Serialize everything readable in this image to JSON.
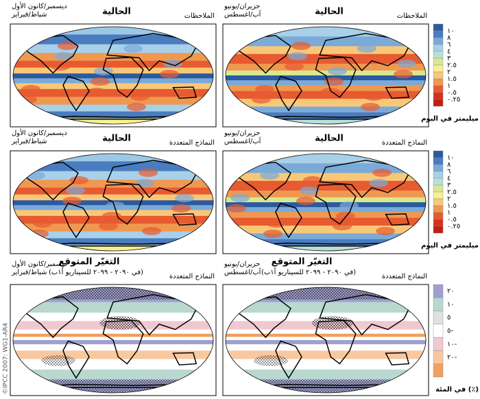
{
  "rows": [
    {
      "panels": [
        {
          "season": [
            "ديسمبر/كانون الأول",
            "شباط/فبراير"
          ],
          "title": "الحالية",
          "source": "الملاحظات"
        },
        {
          "season": [
            "حزيران/يونيو",
            "آب/اغسطس"
          ],
          "title": "الحالية",
          "source": "الملاحظات"
        }
      ],
      "legend": {
        "labels": [
          "١٠",
          "٨",
          "٦",
          "٤",
          "٣",
          "٢.٥",
          "٢",
          "١.٥",
          "١",
          "٠.٥",
          "٠.٢٥"
        ],
        "unit": "ميليمتر في اليوم"
      }
    },
    {
      "panels": [
        {
          "season": [
            "ديسمبر/كانون الأول",
            "شباط/فبراير"
          ],
          "title": "الحالية",
          "source": "النماذج المتعددة"
        },
        {
          "season": [
            "حزيران/يونيو",
            "آب/اغسطس"
          ],
          "title": "الحالية",
          "source": "النماذج المتعددة"
        }
      ],
      "legend": {
        "labels": [
          "١٠",
          "٨",
          "٦",
          "٤",
          "٣",
          "٢.٥",
          "٢",
          "١.٥",
          "١",
          "٠.٥",
          "٠.٢٥"
        ],
        "unit": "ميليمتر في اليوم"
      }
    },
    {
      "panels": [
        {
          "season": [
            "ديسمبر/كانون الأول",
            "شباط/فبراير"
          ],
          "title": "التغيّر المتوقع",
          "subtitle": "(في ٢٠٩٠ - ٢٠٩٩ للسيناريو أ١ب)",
          "source": "النماذج المتعددة"
        },
        {
          "season": [
            "حزيران/يونيو",
            "آب/اغسطس"
          ],
          "title": "التغيّر المتوقع",
          "subtitle": "(في ٢٠٩٠ - ٢٠٩٩ للسيناريو أ١ب)",
          "source": "النماذج المتعددة"
        }
      ],
      "legend": {
        "labels": [
          "٢٠",
          "١٠",
          "٥",
          "٥-",
          "١٠-",
          "٢٠-"
        ],
        "unit": "في المئة (٪)"
      }
    }
  ],
  "credit": "©IPCC 2007: WG1-AR4"
}
